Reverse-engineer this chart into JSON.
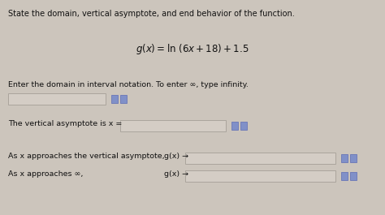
{
  "bg_color": "#ccc5bc",
  "title_text": "State the domain, vertical asymptote, and end behavior of the function.",
  "domain_label": "Enter the domain in interval notation. To enter ∞, type infinity.",
  "asymptote_label": "The vertical asymptote is x =",
  "approach_va_label": "As x approaches the vertical asymptote,",
  "approach_inf_label": "As x approaches ∞,",
  "g_arrow": "g(x) →",
  "text_color": "#111111",
  "input_box_color": "#d4cdc5",
  "input_box_edge": "#aaa49c",
  "icon_color1": "#5c6bb5",
  "icon_color2": "#8090c8",
  "figsize": [
    4.74,
    2.65
  ],
  "dpi": 100,
  "title_fontsize": 7.0,
  "eq_fontsize": 8.5,
  "label_fontsize": 6.8
}
